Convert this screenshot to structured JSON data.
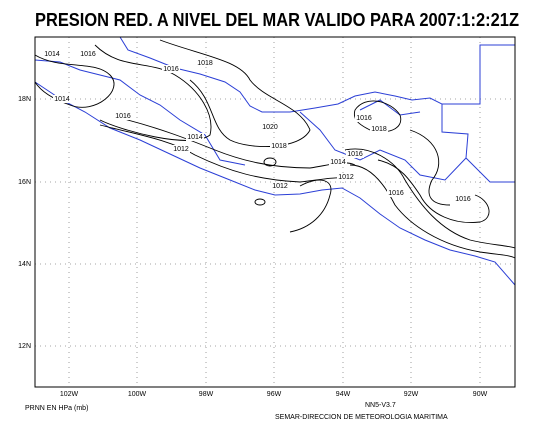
{
  "title": "PRESION RED. A NIVEL DEL MAR VALIDO PARA 2007:1:2:21Z",
  "longitude_labels": [
    "102W",
    "100W",
    "98W",
    "96W",
    "94W",
    "92W",
    "90W"
  ],
  "latitude_labels": [
    "18N",
    "16N",
    "14N",
    "12N"
  ],
  "contour_labels": [
    "1014",
    "1016",
    "1016",
    "1018",
    "1014",
    "1016",
    "1014",
    "1012",
    "1020",
    "1018",
    "1016",
    "1018",
    "1016",
    "1014",
    "1012",
    "1012",
    "1016",
    "1016"
  ],
  "footer": {
    "left": "PRNN EN HPa (mb)",
    "version": "NN5-V3.7",
    "credit": "SEMAR-DIRECCION DE METEOROLOGIA MARITIMA"
  }
}
